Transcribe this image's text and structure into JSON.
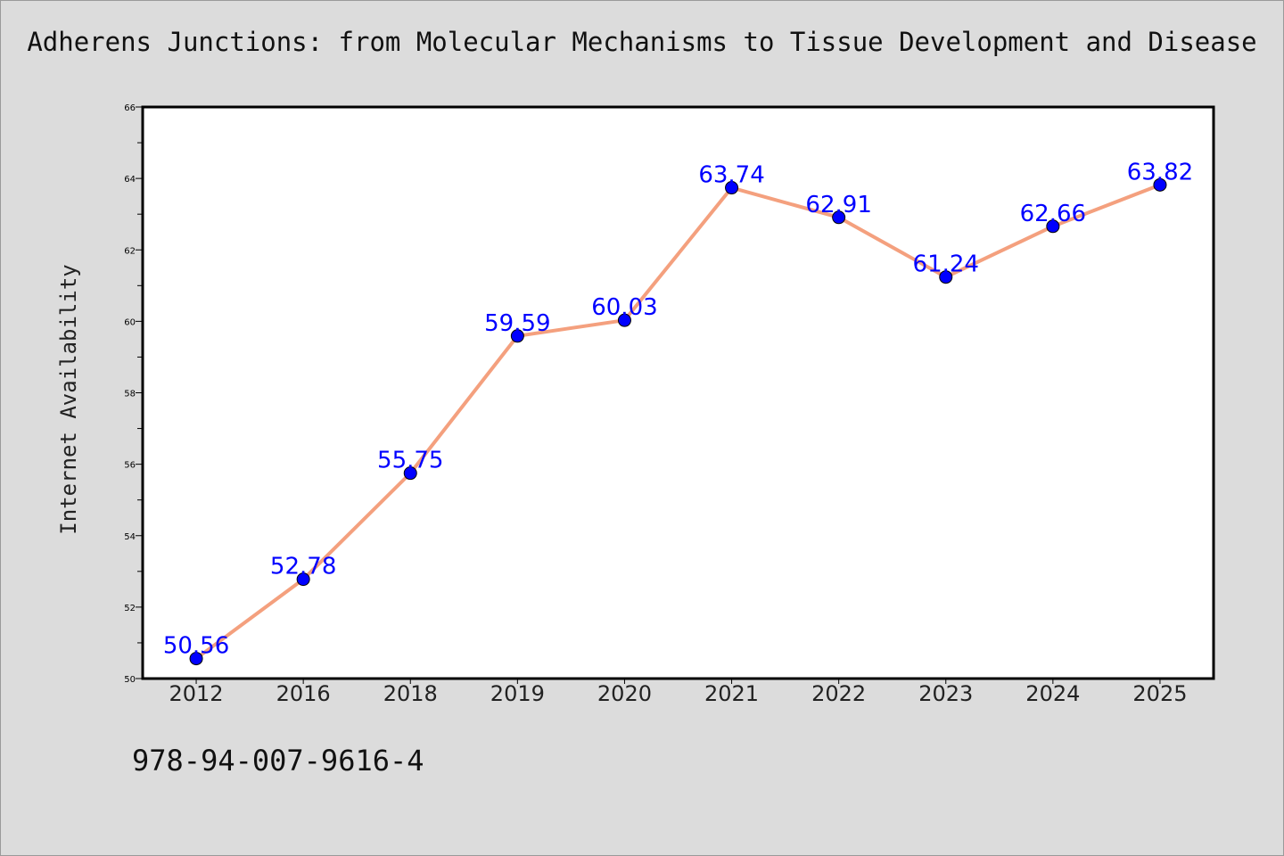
{
  "chart_data": {
    "type": "line",
    "title": "Adherens Junctions: from Molecular Mechanisms to Tissue Development and Disease",
    "xlabel": "",
    "ylabel": "Internet Availability",
    "categories": [
      "2012",
      "2016",
      "2018",
      "2019",
      "2020",
      "2021",
      "2022",
      "2023",
      "2024",
      "2025"
    ],
    "series": [
      {
        "values": [
          50.56,
          52.78,
          55.75,
          59.59,
          60.03,
          63.74,
          62.91,
          61.24,
          62.66,
          63.82
        ],
        "labels": [
          "50.56",
          "52.78",
          "55.75",
          "59.59",
          "60.03",
          "63.74",
          "62.91",
          "61.24",
          "62.66",
          "63.82"
        ]
      }
    ],
    "ylim": [
      50,
      66
    ],
    "yticks": [
      "50",
      "52",
      "54",
      "56",
      "58",
      "60",
      "62",
      "64",
      "66"
    ],
    "grid": false,
    "line_color": "#f4a07e",
    "marker_color": "#0000ff",
    "label_color": "#0000ff"
  },
  "footer": {
    "isbn": "978-94-007-9616-4"
  }
}
